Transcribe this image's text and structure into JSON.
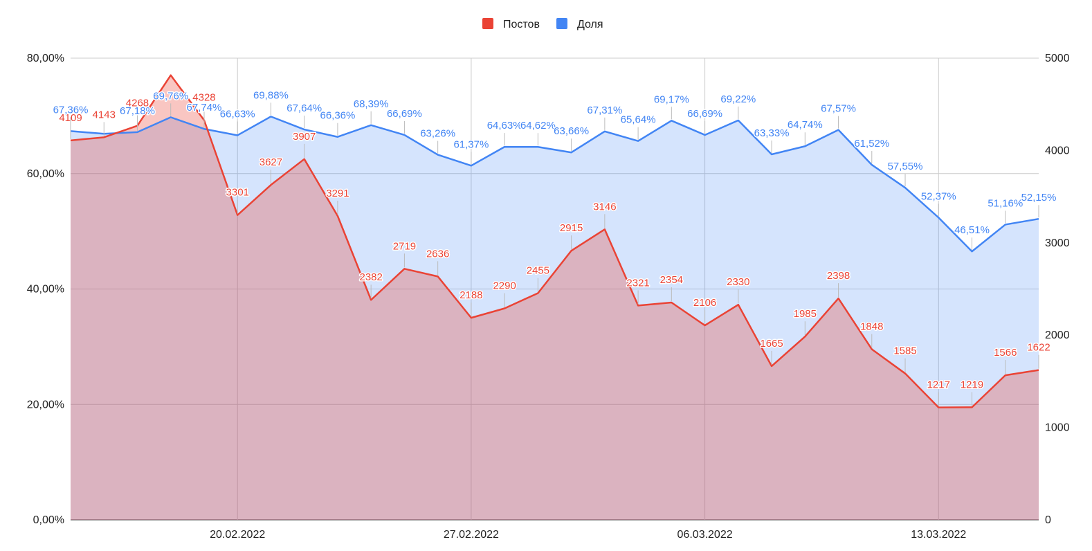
{
  "chart_data": {
    "type": "area",
    "legend_position": "top",
    "grid": true,
    "x_tick_labels": [
      "20.02.2022",
      "27.02.2022",
      "06.03.2022",
      "13.03.2022"
    ],
    "y_left": {
      "ticks": [
        "0,00%",
        "20,00%",
        "40,00%",
        "60,00%",
        "80,00%"
      ],
      "range": [
        0,
        80
      ]
    },
    "y_right": {
      "ticks": [
        "0",
        "1000",
        "2000",
        "3000",
        "4000",
        "5000"
      ],
      "range": [
        0,
        5000
      ]
    },
    "series": [
      {
        "name": "Постов",
        "color": "#ea4335",
        "axis": "right",
        "values": [
          4109,
          4143,
          4268,
          4815,
          4328,
          3301,
          3627,
          3907,
          3291,
          2382,
          2719,
          2636,
          2188,
          2290,
          2455,
          2915,
          3146,
          2321,
          2354,
          2106,
          2330,
          1665,
          1985,
          2398,
          1848,
          1585,
          1217,
          1219,
          1566,
          1622
        ],
        "labels": [
          "4109",
          "4143",
          "4268",
          "",
          "4328",
          "3301",
          "3627",
          "3907",
          "3291",
          "2382",
          "2719",
          "2636",
          "2188",
          "2290",
          "2455",
          "2915",
          "3146",
          "2321",
          "2354",
          "2106",
          "2330",
          "1665",
          "1985",
          "2398",
          "1848",
          "1585",
          "1217",
          "1219",
          "1566",
          "1622"
        ]
      },
      {
        "name": "Доля",
        "color": "#4285f4",
        "axis": "left",
        "values": [
          67.36,
          66.9,
          67.18,
          69.76,
          67.74,
          66.63,
          69.88,
          67.64,
          66.36,
          68.39,
          66.69,
          63.26,
          61.37,
          64.63,
          64.62,
          63.66,
          67.31,
          65.64,
          69.17,
          66.69,
          69.22,
          63.33,
          64.74,
          67.57,
          61.52,
          57.55,
          52.37,
          46.51,
          51.16,
          52.15
        ],
        "labels": [
          "67,36%",
          "",
          "67,18%",
          "69,76%",
          "67,74%",
          "66,63%",
          "69,88%",
          "67,64%",
          "66,36%",
          "68,39%",
          "66,69%",
          "63,26%",
          "61,37%",
          "64,63%",
          "64,62%",
          "63,66%",
          "67,31%",
          "65,64%",
          "69,17%",
          "66,69%",
          "69,22%",
          "63,33%",
          "64,74%",
          "67,57%",
          "61,52%",
          "57,55%",
          "52,37%",
          "46,51%",
          "51,16%",
          "52,15%"
        ]
      }
    ]
  }
}
